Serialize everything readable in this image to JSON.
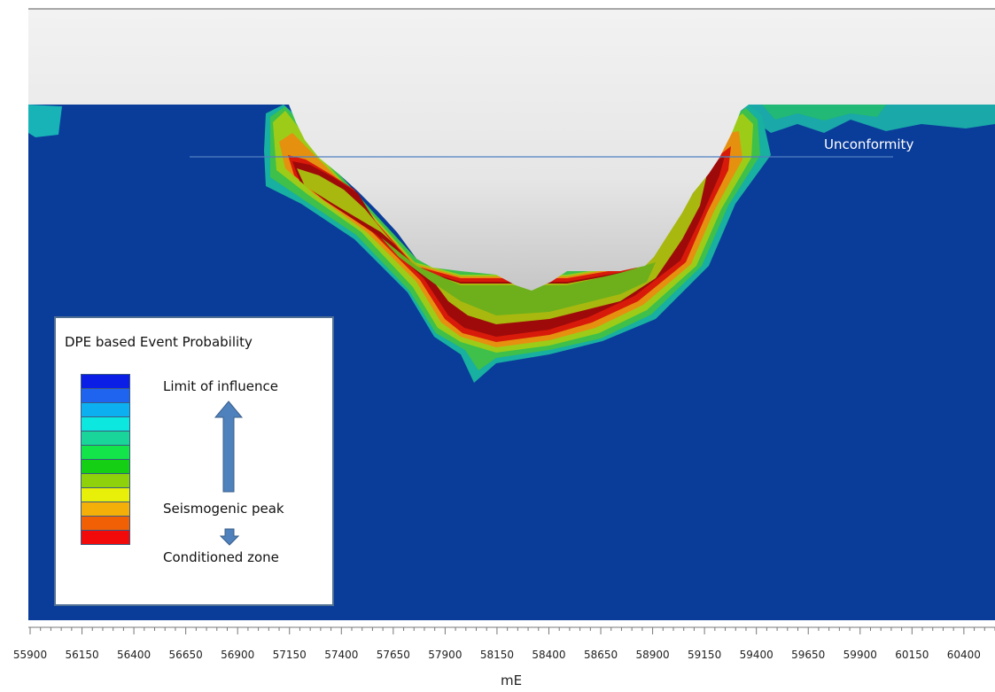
{
  "chart_data": {
    "type": "heatmap",
    "title": "",
    "xlabel": "mE",
    "ylabel": "",
    "x_ticks": [
      "55900",
      "56150",
      "56400",
      "56650",
      "56900",
      "57150",
      "57400",
      "57650",
      "57900",
      "58150",
      "58400",
      "58650",
      "58900",
      "59150",
      "59400",
      "59650",
      "59900",
      "60150",
      "60400"
    ],
    "xlim": [
      55900,
      60550
    ],
    "annotations": [
      {
        "text": "Unconformity"
      }
    ],
    "legend": {
      "title": "DPE based Event Probability",
      "placement": "bottom-left",
      "colors": [
        "#0a1ee6",
        "#1f64ee",
        "#0cb0f0",
        "#0ce8e0",
        "#19d59a",
        "#12e44a",
        "#14cf14",
        "#8fd10a",
        "#e8f00a",
        "#f4b008",
        "#f26006",
        "#f20a0a"
      ],
      "labels": {
        "top": "Limit of influence",
        "middle": "Seismogenic peak",
        "bottom": "Conditioned zone"
      }
    },
    "colors": {
      "background_field": "#0a3c9a",
      "pit": "#e8e8e8",
      "unconformity_line": "#4f7fbf",
      "arrow": "#4f81bd"
    }
  }
}
